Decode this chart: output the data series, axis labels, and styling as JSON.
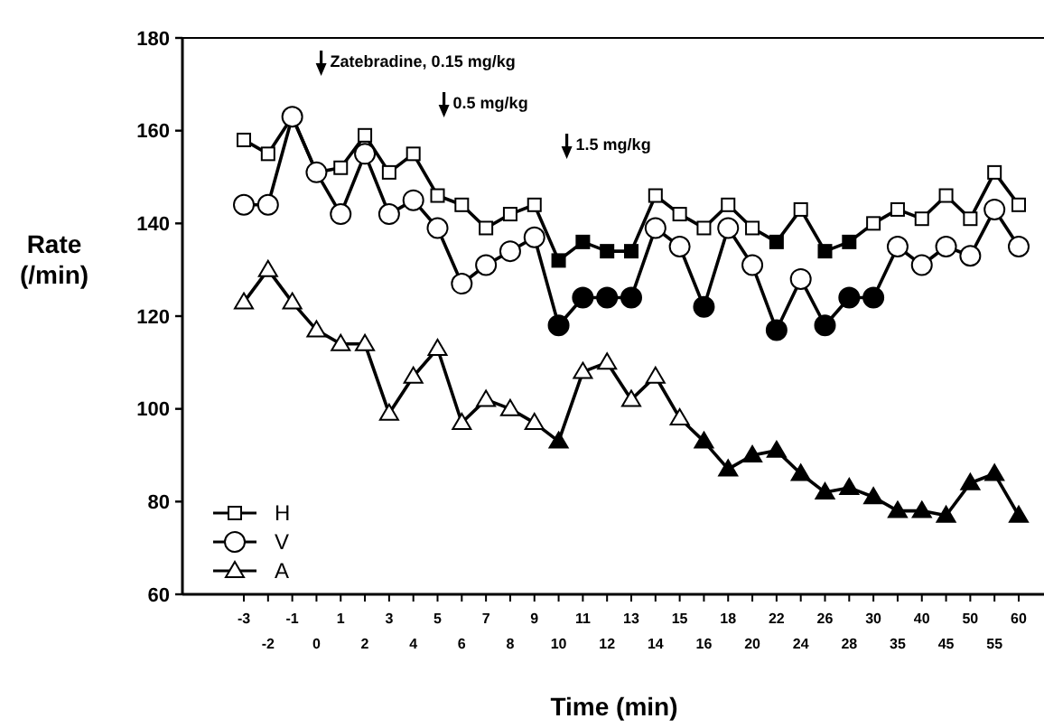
{
  "chart_data": {
    "type": "line",
    "xlabel": "Time (min)",
    "ylabel": "Rate\n(/min)",
    "categories": [
      "-3",
      "-2",
      "-1",
      "0",
      "1",
      "2",
      "3",
      "4",
      "5",
      "6",
      "7",
      "8",
      "9",
      "10",
      "11",
      "12",
      "13",
      "14",
      "15",
      "16",
      "18",
      "20",
      "22",
      "24",
      "26",
      "28",
      "30",
      "35",
      "40",
      "45",
      "50",
      "55",
      "60"
    ],
    "ylim": [
      60,
      180
    ],
    "yticks": [
      60,
      80,
      100,
      120,
      140,
      160,
      180
    ],
    "grid": false,
    "legend": "bottom left",
    "series": [
      {
        "name": "H",
        "color": "#000000",
        "marker": "square",
        "values": [
          158,
          155,
          163,
          151,
          152,
          159,
          151,
          155,
          146,
          144,
          139,
          142,
          144,
          132,
          136,
          134,
          134,
          146,
          142,
          139,
          144,
          139,
          136,
          143,
          134,
          136,
          140,
          143,
          141,
          146,
          141,
          151,
          144
        ],
        "colors": [
          "#ffffff",
          "#ffffff",
          "#ffffff",
          "#ffffff",
          "#ffffff",
          "#ffffff",
          "#ffffff",
          "#ffffff",
          "#ffffff",
          "#ffffff",
          "#ffffff",
          "#ffffff",
          "#ffffff",
          "#000000",
          "#000000",
          "#000000",
          "#000000",
          "#ffffff",
          "#ffffff",
          "#ffffff",
          "#ffffff",
          "#ffffff",
          "#000000",
          "#ffffff",
          "#000000",
          "#000000",
          "#ffffff",
          "#ffffff",
          "#ffffff",
          "#ffffff",
          "#ffffff",
          "#ffffff",
          "#ffffff"
        ]
      },
      {
        "name": "V",
        "color": "#000000",
        "marker": "circle",
        "values": [
          144,
          144,
          163,
          151,
          142,
          155,
          142,
          145,
          139,
          127,
          131,
          134,
          137,
          118,
          124,
          124,
          124,
          139,
          135,
          122,
          139,
          131,
          117,
          128,
          118,
          124,
          124,
          135,
          131,
          135,
          133,
          143,
          135
        ],
        "colors": [
          "#ffffff",
          "#ffffff",
          "#ffffff",
          "#ffffff",
          "#ffffff",
          "#ffffff",
          "#ffffff",
          "#ffffff",
          "#ffffff",
          "#ffffff",
          "#ffffff",
          "#ffffff",
          "#ffffff",
          "#000000",
          "#000000",
          "#000000",
          "#000000",
          "#ffffff",
          "#ffffff",
          "#000000",
          "#ffffff",
          "#ffffff",
          "#000000",
          "#ffffff",
          "#000000",
          "#000000",
          "#000000",
          "#ffffff",
          "#ffffff",
          "#ffffff",
          "#ffffff",
          "#ffffff",
          "#ffffff"
        ]
      },
      {
        "name": "A",
        "color": "#000000",
        "marker": "triangle",
        "values": [
          123,
          130,
          123,
          117,
          114,
          114,
          99,
          107,
          113,
          97,
          102,
          100,
          97,
          93,
          108,
          110,
          102,
          107,
          98,
          93,
          87,
          90,
          91,
          86,
          82,
          83,
          81,
          78,
          78,
          77,
          84,
          86,
          77
        ],
        "colors": [
          "#ffffff",
          "#ffffff",
          "#ffffff",
          "#ffffff",
          "#ffffff",
          "#ffffff",
          "#ffffff",
          "#ffffff",
          "#ffffff",
          "#ffffff",
          "#ffffff",
          "#ffffff",
          "#ffffff",
          "#000000",
          "#ffffff",
          "#ffffff",
          "#ffffff",
          "#ffffff",
          "#ffffff",
          "#000000",
          "#000000",
          "#000000",
          "#000000",
          "#000000",
          "#000000",
          "#000000",
          "#000000",
          "#000000",
          "#000000",
          "#000000",
          "#000000",
          "#000000",
          "#000000"
        ]
      }
    ],
    "annotations": [
      "Zatebradine, 0.15 mg/kg",
      "0.5 mg/kg",
      "1.5 mg/kg"
    ]
  }
}
